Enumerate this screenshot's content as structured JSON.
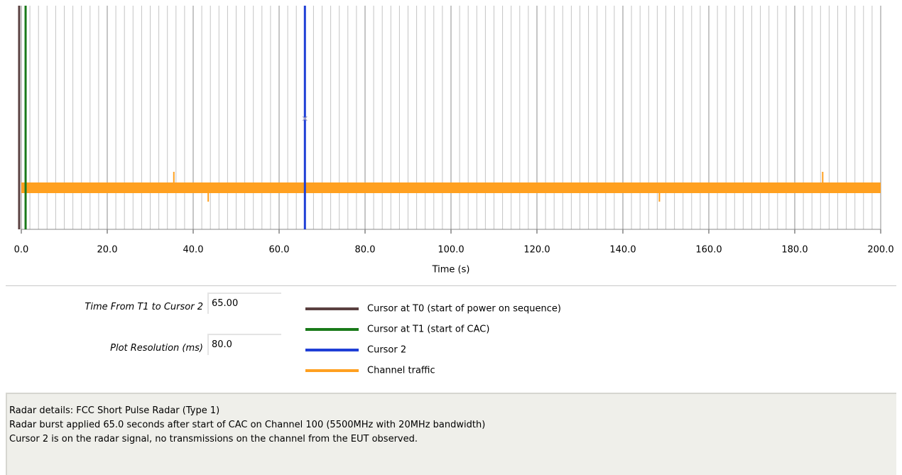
{
  "plot": {
    "x_label": "Time (s)",
    "xlim": [
      0,
      200
    ],
    "xticks": [
      {
        "value": 0,
        "label": "0.0"
      },
      {
        "value": 20,
        "label": "20.0"
      },
      {
        "value": 40,
        "label": "40.0"
      },
      {
        "value": 60,
        "label": "60.0"
      },
      {
        "value": 80,
        "label": "80.0"
      },
      {
        "value": 100,
        "label": "100.0"
      },
      {
        "value": 120,
        "label": "120.0"
      },
      {
        "value": 140,
        "label": "140.0"
      },
      {
        "value": 160,
        "label": "160.0"
      },
      {
        "value": 180,
        "label": "180.0"
      },
      {
        "value": 200,
        "label": "200.0"
      }
    ],
    "grid": true,
    "cursors": [
      {
        "name": "Cursor at T0 (start of power on sequence)",
        "value": -0.5,
        "color": "#5a4040"
      },
      {
        "name": "Cursor at T1 (start of CAC)",
        "value": 1.0,
        "color": "#1a7a1a"
      },
      {
        "name": "Cursor 2",
        "value": 66.0,
        "color": "#1f3fd6"
      }
    ],
    "traffic": {
      "name": "Channel traffic",
      "color": "#ffa020",
      "start": 0,
      "end": 200,
      "spikes": [
        35.5,
        43.5,
        148.5,
        186.5
      ]
    }
  },
  "fields": [
    {
      "label": "Time From T1 to Cursor 2",
      "value": "65.00"
    },
    {
      "label": "Plot Resolution (ms)",
      "value": "80.0"
    }
  ],
  "details": [
    "Radar details: FCC Short Pulse Radar (Type 1)",
    "Radar burst applied 65.0 seconds after start of CAC on Channel 100 (5500MHz with 20MHz bandwidth)",
    "Cursor 2 is on the radar signal, no transmissions on the channel from the EUT observed."
  ]
}
